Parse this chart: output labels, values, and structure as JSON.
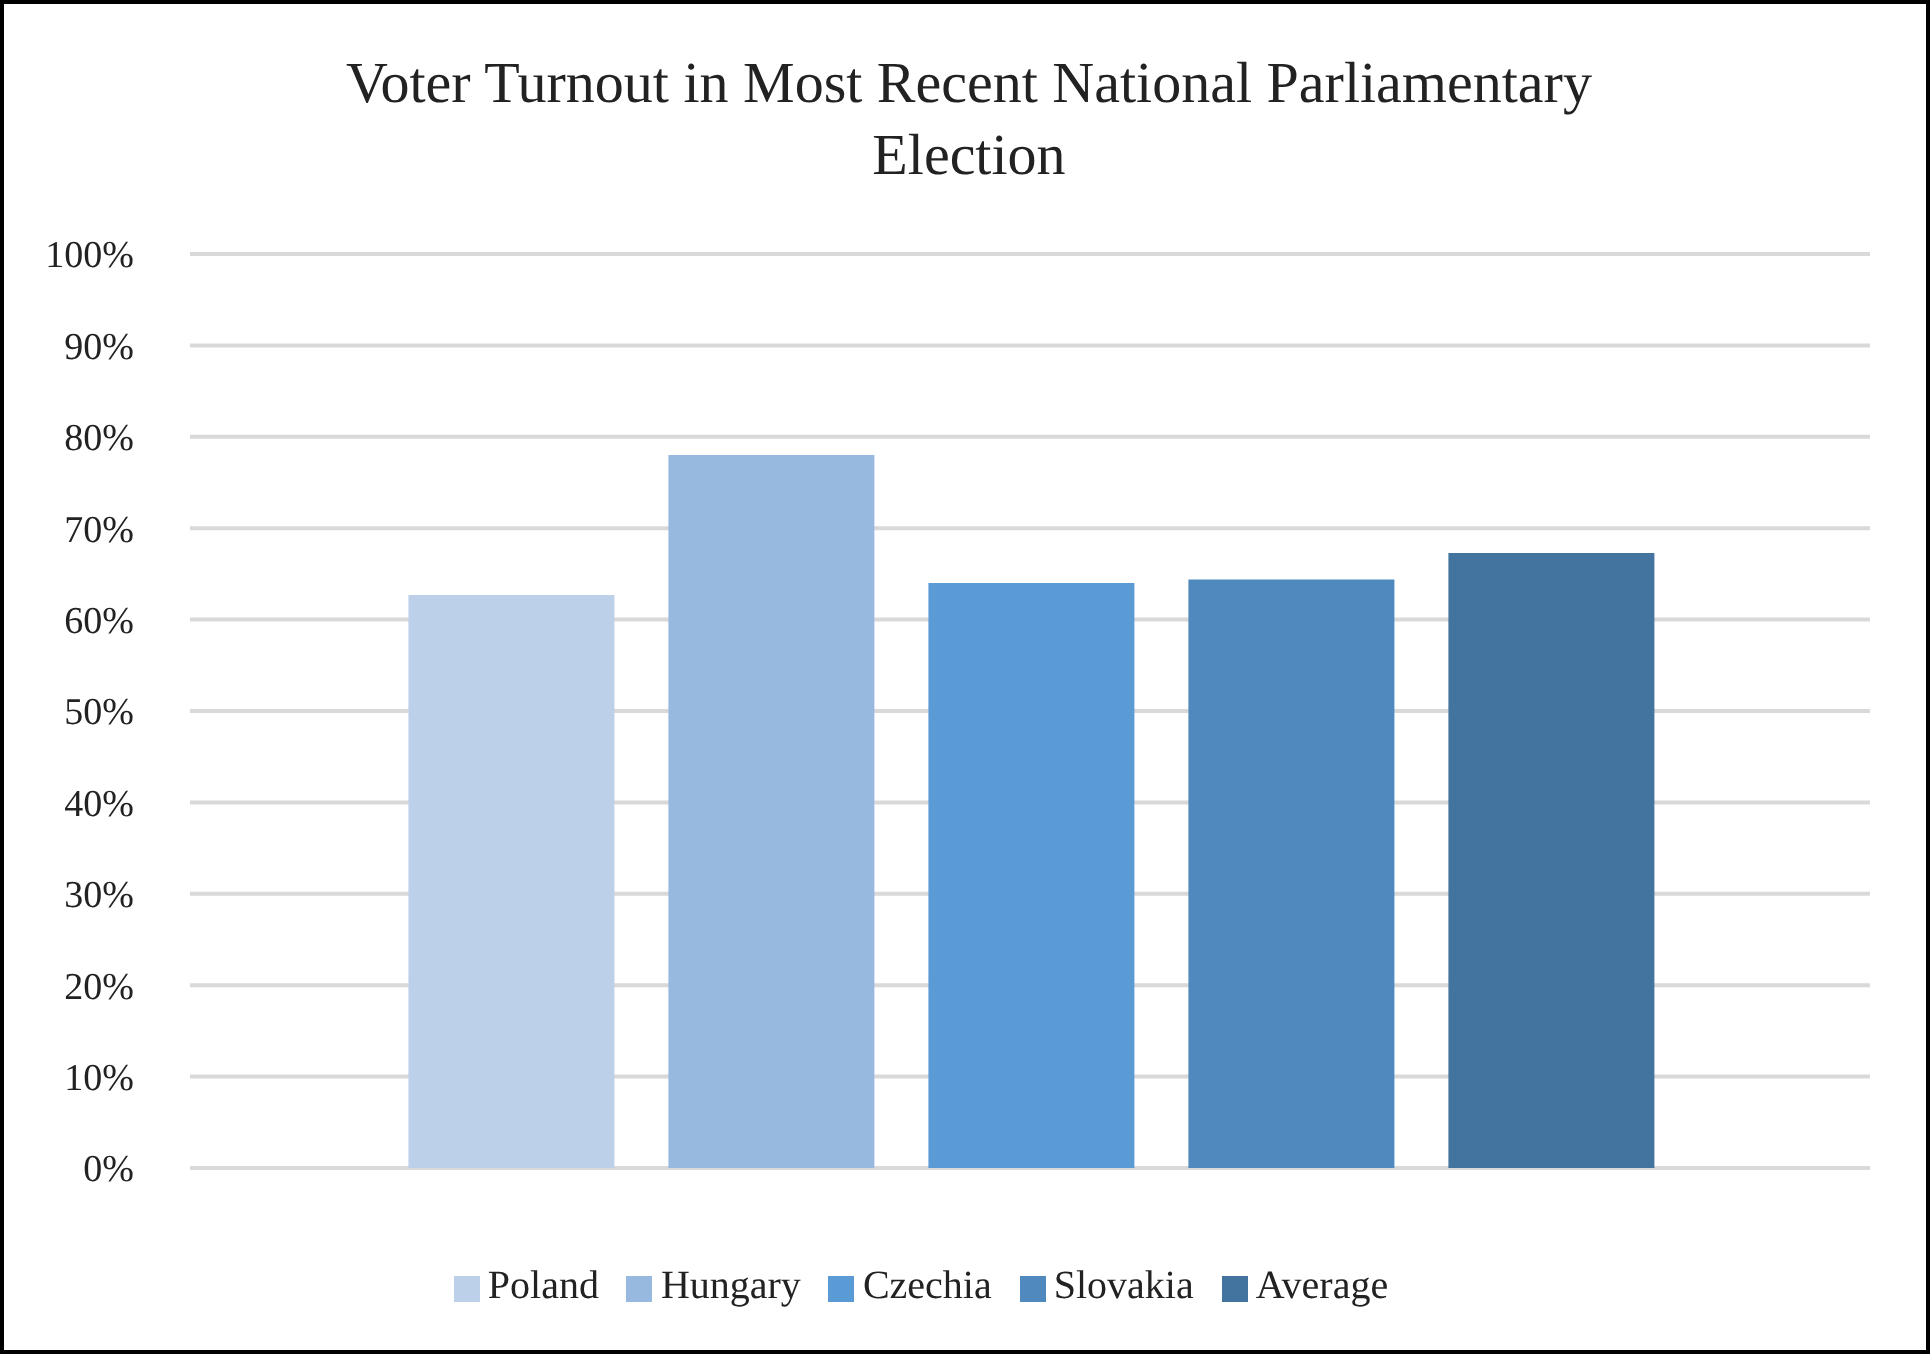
{
  "chart_data": {
    "type": "bar",
    "title": "Voter Turnout in Most Recent National Parliamentary Election",
    "categories": [
      null
    ],
    "series": [
      {
        "name": "Poland",
        "color": "#bdd0ea",
        "values": [
          62.7
        ]
      },
      {
        "name": "Hungary",
        "color": "#97b8df",
        "values": [
          78.0
        ]
      },
      {
        "name": "Czechia",
        "color": "#5b9bd5",
        "values": [
          64.0
        ]
      },
      {
        "name": "Slovakia",
        "color": "#4f89bd",
        "values": [
          64.4
        ]
      },
      {
        "name": "Average",
        "color": "#43739f",
        "values": [
          67.3
        ]
      }
    ],
    "ylim": [
      0,
      100
    ],
    "yticks": [
      {
        "value": 0,
        "label": "0%"
      },
      {
        "value": 10,
        "label": "10%"
      },
      {
        "value": 20,
        "label": "20%"
      },
      {
        "value": 30,
        "label": "30%"
      },
      {
        "value": 40,
        "label": "40%"
      },
      {
        "value": 50,
        "label": "50%"
      },
      {
        "value": 60,
        "label": "60%"
      },
      {
        "value": 70,
        "label": "70%"
      },
      {
        "value": 80,
        "label": "80%"
      },
      {
        "value": 90,
        "label": "90%"
      },
      {
        "value": 100,
        "label": "100%"
      }
    ],
    "grid": "y",
    "legend": "bottom"
  }
}
